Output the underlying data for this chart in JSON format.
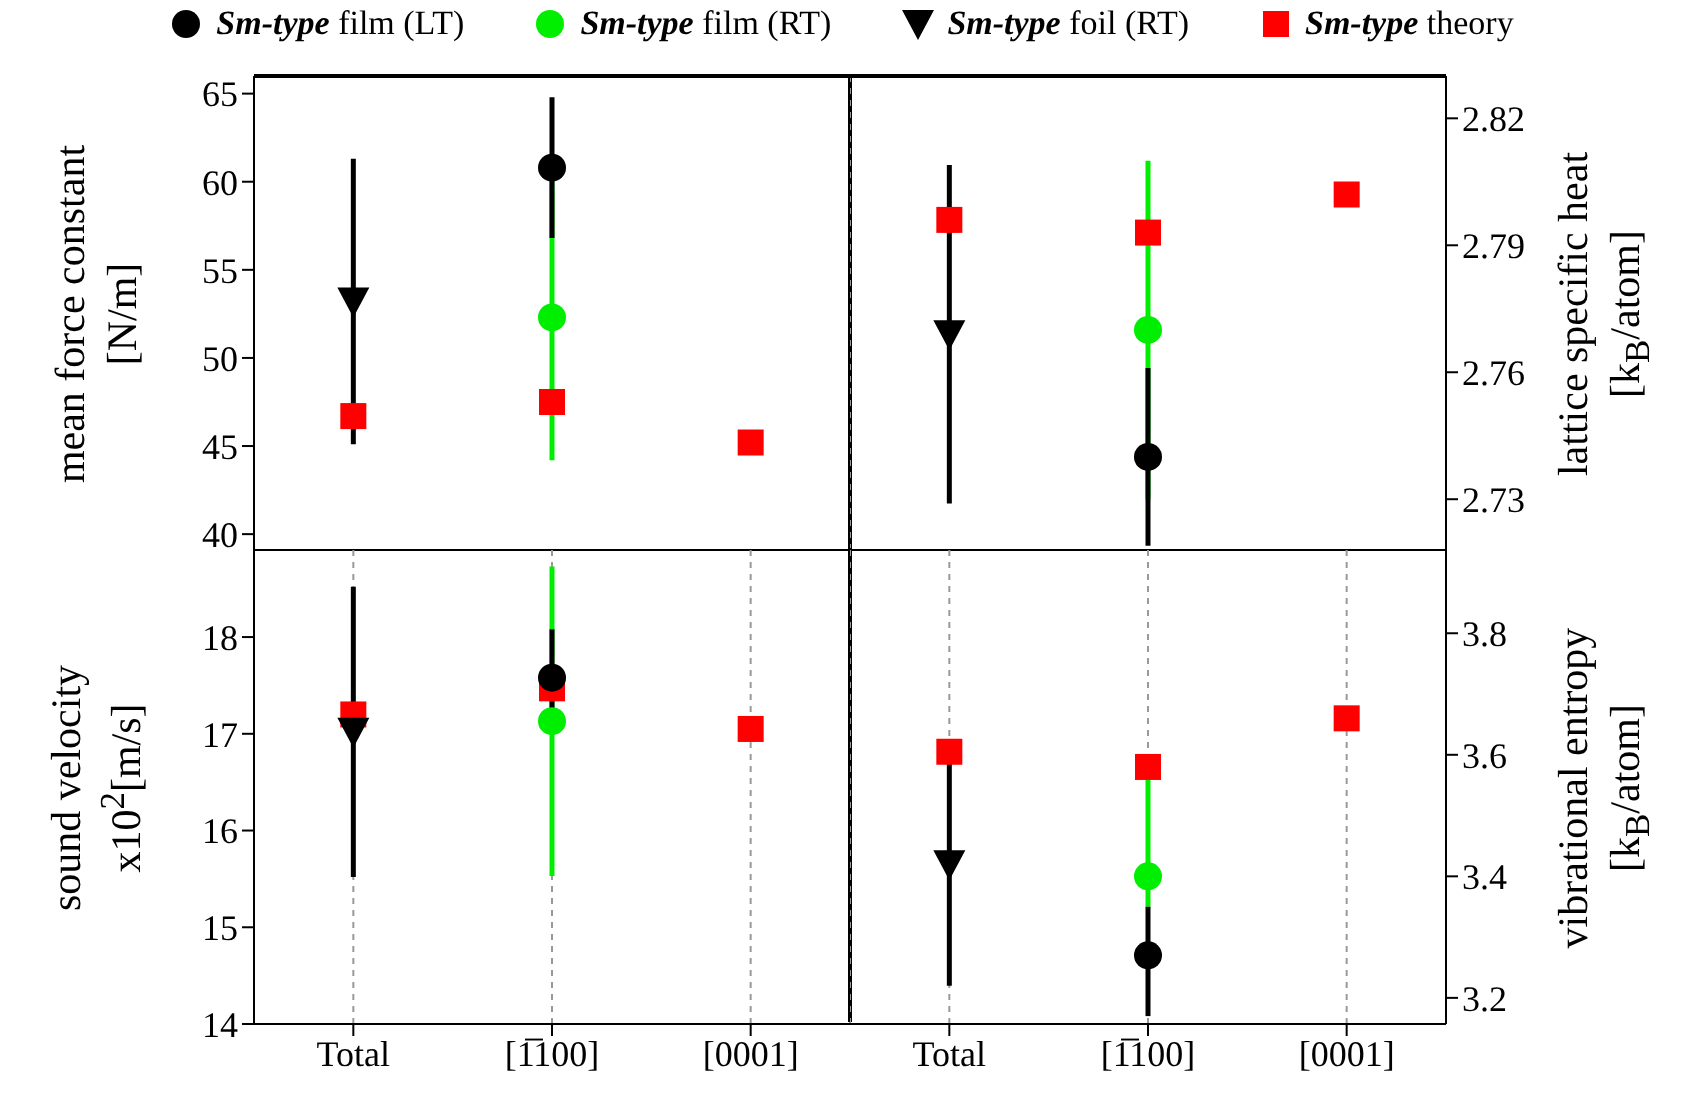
{
  "chart_data": [
    {
      "type": "scatter",
      "categories": [
        null,
        null,
        null
      ],
      "ylim": [
        39.1,
        66
      ],
      "yticks": [
        40,
        45,
        50,
        55,
        60,
        65
      ],
      "ylabel": "mean force constant\n[N/m]",
      "grid": "x",
      "tick_labels": "y",
      "legend": "top",
      "series": [
        {
          "name": "Sm-type film (LT)",
          "color": "#000000",
          "marker": "circle",
          "values": [
            null,
            60.8,
            null
          ],
          "errors": [
            null,
            4,
            null
          ]
        },
        {
          "name": "Sm-type film (RT)",
          "color": "#00ee00",
          "marker": "circle",
          "values": [
            null,
            52.3,
            null
          ],
          "errors": [
            null,
            8.1,
            null
          ]
        },
        {
          "name": "Sm-type foil (RT)",
          "color": "#000000",
          "marker": "triangle",
          "values": [
            53.2,
            null,
            null
          ],
          "errors": [
            8.1,
            null,
            null
          ]
        },
        {
          "name": "Sm-type theory",
          "color": "#ff0000",
          "marker": "square",
          "values": [
            46.7,
            47.5,
            45.2
          ]
        }
      ]
    },
    {
      "type": "scatter",
      "categories": [
        null,
        null,
        null
      ],
      "y2lim": [
        2.718,
        2.83
      ],
      "y2ticks": [
        2.73,
        2.76,
        2.79,
        2.82
      ],
      "y2label": "lattice specific heat\n[k$_{B}$/atom]",
      "grid": "x",
      "tick_labels": "y",
      "series": [
        {
          "color": "#000000",
          "marker": "circle",
          "axis": "y2",
          "values": [
            null,
            2.74,
            null
          ],
          "errors": [
            null,
            0.021,
            null
          ]
        },
        {
          "color": "#00ee00",
          "marker": "circle",
          "axis": "y2",
          "values": [
            null,
            2.77,
            null
          ],
          "errors": [
            null,
            0.04,
            null
          ]
        },
        {
          "color": "#000000",
          "marker": "triangle",
          "axis": "y2",
          "values": [
            2.769,
            null,
            null
          ],
          "errors": [
            0.04,
            null,
            null
          ]
        },
        {
          "color": "#ff0000",
          "marker": "square",
          "axis": "y2",
          "values": [
            2.796,
            2.793,
            2.802
          ]
        }
      ]
    },
    {
      "type": "scatter",
      "categories": [
        "Total",
        "[1̅100]",
        "[0001]"
      ],
      "ylim": [
        14,
        18.9
      ],
      "yticks": [
        14,
        15,
        16,
        17,
        18
      ],
      "ylabel": "sound velocity\nx10$^{2}$[m/s]",
      "grid": "x",
      "series": [
        {
          "color": "#000000",
          "marker": "circle",
          "values": [
            null,
            17.58,
            null
          ],
          "errors": [
            null,
            0.5,
            null
          ]
        },
        {
          "color": "#00ee00",
          "marker": "circle",
          "values": [
            null,
            17.13,
            null
          ],
          "errors": [
            null,
            1.6,
            null
          ]
        },
        {
          "color": "#000000",
          "marker": "triangle",
          "values": [
            17.02,
            null,
            null
          ],
          "errors": [
            1.5,
            null,
            null
          ]
        },
        {
          "color": "#ff0000",
          "marker": "square",
          "values": [
            17.2,
            17.47,
            17.05
          ]
        }
      ]
    },
    {
      "type": "scatter",
      "categories": [
        "Total",
        "[1̅100]",
        "[0001]"
      ],
      "y2lim": [
        3.157,
        3.937
      ],
      "y2ticks": [
        3.2,
        3.4,
        3.6,
        3.8
      ],
      "y2label": "vibrational entropy\n[k$_{B}$/atom]",
      "grid": "x",
      "series": [
        {
          "color": "#000000",
          "marker": "circle",
          "axis": "y2",
          "values": [
            null,
            3.27,
            null
          ],
          "errors": [
            null,
            [
              3.17,
              3.35
            ],
            null
          ]
        },
        {
          "color": "#00ee00",
          "marker": "circle",
          "axis": "y2",
          "values": [
            null,
            3.4,
            null
          ],
          "errors": [
            null,
            [
              3.35,
              3.6
            ],
            null
          ]
        },
        {
          "color": "#000000",
          "marker": "triangle",
          "axis": "y2",
          "values": [
            3.42,
            null,
            null
          ],
          "errors": [
            0.2,
            null,
            null
          ]
        },
        {
          "color": "#ff0000",
          "marker": "square",
          "axis": "y2",
          "values": [
            3.605,
            3.58,
            3.66
          ]
        }
      ]
    }
  ]
}
